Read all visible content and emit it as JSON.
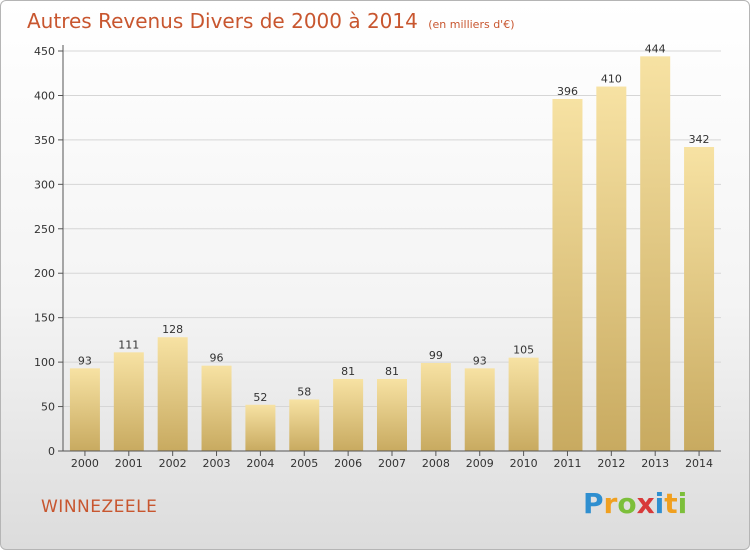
{
  "title": "Autres Revenus Divers de 2000 à 2014",
  "subtitle": "(en milliers d'€)",
  "commune": "WINNEZEELE",
  "logo": {
    "text": "Proxiti",
    "letters": [
      {
        "ch": "P",
        "color": "#2f8fd0"
      },
      {
        "ch": "r",
        "color": "#f0a020"
      },
      {
        "ch": "o",
        "color": "#7cbf3a"
      },
      {
        "ch": "x",
        "color": "#d83a3a"
      },
      {
        "ch": "i",
        "color": "#2f8fd0"
      },
      {
        "ch": "t",
        "color": "#f0a020"
      },
      {
        "ch": "i",
        "color": "#7cbf3a"
      }
    ]
  },
  "colors": {
    "title": "#c8562f",
    "bar_top": "#f7e2a3",
    "bar_bottom": "#c8aa60",
    "grid": "#d6d6d6"
  },
  "chart_data": {
    "type": "bar",
    "title": "Autres Revenus Divers de 2000 à 2014",
    "subtitle": "(en milliers d'€)",
    "categories": [
      "2000",
      "2001",
      "2002",
      "2003",
      "2004",
      "2005",
      "2006",
      "2007",
      "2008",
      "2009",
      "2010",
      "2011",
      "2012",
      "2013",
      "2014"
    ],
    "values": [
      93,
      111,
      128,
      96,
      52,
      58,
      81,
      81,
      99,
      93,
      105,
      396,
      410,
      444,
      342
    ],
    "ylim": [
      0,
      450
    ],
    "yticks": [
      0,
      50,
      100,
      150,
      200,
      250,
      300,
      350,
      400,
      450
    ],
    "grid": true,
    "data_labels": true
  }
}
